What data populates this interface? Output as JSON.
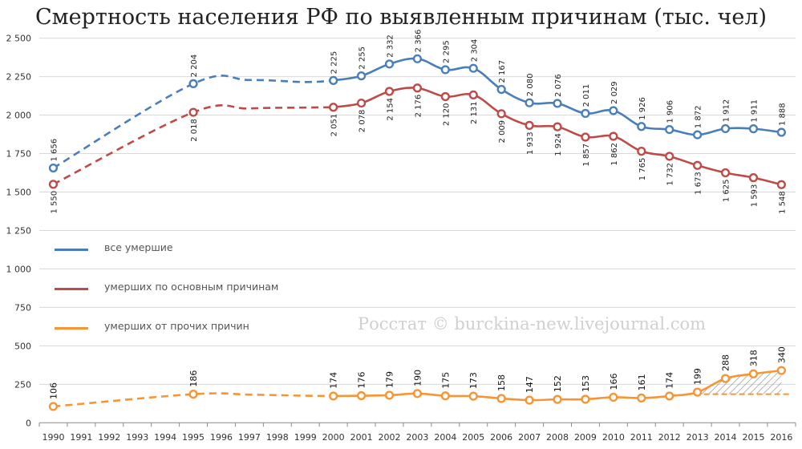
{
  "title": "Смертность населения РФ по выявленным причинам (тыс. чел)",
  "watermark": "Росстат © burckina-new.livejournal.com",
  "chart_data": {
    "type": "line",
    "title": "Смертность населения РФ по выявленным причинам (тыс. чел)",
    "x": [
      "1990",
      "1991",
      "1992",
      "1993",
      "1994",
      "1995",
      "1996",
      "1997",
      "1998",
      "1999",
      "2000",
      "2001",
      "2002",
      "2003",
      "2004",
      "2005",
      "2006",
      "2007",
      "2008",
      "2009",
      "2010",
      "2011",
      "2012",
      "2013",
      "2014",
      "2015",
      "2016"
    ],
    "ylim": [
      0,
      2500
    ],
    "yticks": [
      0,
      250,
      500,
      750,
      1000,
      1250,
      1500,
      1750,
      2000,
      2250,
      2500
    ],
    "ytick_labels": [
      "0",
      "250",
      "500",
      "750",
      "1 000",
      "1 250",
      "1 500",
      "1 750",
      "2 000",
      "2 250",
      "2 500"
    ],
    "grid": true,
    "legend_position": "left",
    "series": [
      {
        "name": "все умершие",
        "color": "#4a7ebb",
        "points": [
          {
            "x": "1990",
            "y": 1656,
            "label": "1 656"
          },
          {
            "x": "1995",
            "y": 2204,
            "label": "2 204"
          },
          {
            "x": "2000",
            "y": 2225,
            "label": "2 225"
          },
          {
            "x": "2001",
            "y": 2255,
            "label": "2 255"
          },
          {
            "x": "2002",
            "y": 2332,
            "label": "2 332"
          },
          {
            "x": "2003",
            "y": 2366,
            "label": "2 366"
          },
          {
            "x": "2004",
            "y": 2295,
            "label": "2 295"
          },
          {
            "x": "2005",
            "y": 2304,
            "label": "2 304"
          },
          {
            "x": "2006",
            "y": 2167,
            "label": "2 167"
          },
          {
            "x": "2007",
            "y": 2080,
            "label": "2 080"
          },
          {
            "x": "2008",
            "y": 2076,
            "label": "2 076"
          },
          {
            "x": "2009",
            "y": 2011,
            "label": "2 011"
          },
          {
            "x": "2010",
            "y": 2029,
            "label": "2 029"
          },
          {
            "x": "2011",
            "y": 1926,
            "label": "1 926"
          },
          {
            "x": "2012",
            "y": 1906,
            "label": "1 906"
          },
          {
            "x": "2013",
            "y": 1872,
            "label": "1 872"
          },
          {
            "x": "2014",
            "y": 1912,
            "label": "1 912"
          },
          {
            "x": "2015",
            "y": 1911,
            "label": "1 911"
          },
          {
            "x": "2016",
            "y": 1888,
            "label": "1 888"
          }
        ]
      },
      {
        "name": "умерших по основным причинам",
        "color": "#be4b48",
        "points": [
          {
            "x": "1990",
            "y": 1550,
            "label": "1 550"
          },
          {
            "x": "1995",
            "y": 2018,
            "label": "2 018"
          },
          {
            "x": "2000",
            "y": 2051,
            "label": "2 051"
          },
          {
            "x": "2001",
            "y": 2078,
            "label": "2 078"
          },
          {
            "x": "2002",
            "y": 2154,
            "label": "2 154"
          },
          {
            "x": "2003",
            "y": 2176,
            "label": "2 176"
          },
          {
            "x": "2004",
            "y": 2120,
            "label": "2 120"
          },
          {
            "x": "2005",
            "y": 2131,
            "label": "2 131"
          },
          {
            "x": "2006",
            "y": 2009,
            "label": "2 009"
          },
          {
            "x": "2007",
            "y": 1933,
            "label": "1 933"
          },
          {
            "x": "2008",
            "y": 1924,
            "label": "1 924"
          },
          {
            "x": "2009",
            "y": 1857,
            "label": "1 857"
          },
          {
            "x": "2010",
            "y": 1862,
            "label": "1 862"
          },
          {
            "x": "2011",
            "y": 1765,
            "label": "1 765"
          },
          {
            "x": "2012",
            "y": 1732,
            "label": "1 732"
          },
          {
            "x": "2013",
            "y": 1673,
            "label": "1 673"
          },
          {
            "x": "2014",
            "y": 1625,
            "label": "1 625"
          },
          {
            "x": "2015",
            "y": 1593,
            "label": "1 593"
          },
          {
            "x": "2016",
            "y": 1548,
            "label": "1 548"
          }
        ]
      },
      {
        "name": "умерших от прочих причин",
        "color": "#f79433",
        "points": [
          {
            "x": "1990",
            "y": 106,
            "label": "106"
          },
          {
            "x": "1995",
            "y": 186,
            "label": "186"
          },
          {
            "x": "2000",
            "y": 174,
            "label": "174"
          },
          {
            "x": "2001",
            "y": 176,
            "label": "176"
          },
          {
            "x": "2002",
            "y": 179,
            "label": "179"
          },
          {
            "x": "2003",
            "y": 190,
            "label": "190"
          },
          {
            "x": "2004",
            "y": 175,
            "label": "175"
          },
          {
            "x": "2005",
            "y": 173,
            "label": "173"
          },
          {
            "x": "2006",
            "y": 158,
            "label": "158"
          },
          {
            "x": "2007",
            "y": 147,
            "label": "147"
          },
          {
            "x": "2008",
            "y": 152,
            "label": "152"
          },
          {
            "x": "2009",
            "y": 153,
            "label": "153"
          },
          {
            "x": "2010",
            "y": 166,
            "label": "166"
          },
          {
            "x": "2011",
            "y": 161,
            "label": "161"
          },
          {
            "x": "2012",
            "y": 174,
            "label": "174"
          },
          {
            "x": "2013",
            "y": 199,
            "label": "199"
          },
          {
            "x": "2014",
            "y": 288,
            "label": "288"
          },
          {
            "x": "2015",
            "y": 318,
            "label": "318"
          },
          {
            "x": "2016",
            "y": 340,
            "label": "340"
          }
        ]
      }
    ],
    "dashed_segments": [
      {
        "series": 0,
        "x": [
          "1990",
          "1995",
          "1997",
          "1999",
          "2000"
        ],
        "y": [
          1656,
          2204,
          2228,
          2215,
          2225
        ]
      },
      {
        "series": 1,
        "x": [
          "1990",
          "1995",
          "1997",
          "1999",
          "2000"
        ],
        "y": [
          1550,
          2018,
          2043,
          2049,
          2051
        ]
      },
      {
        "series": 2,
        "x": [
          "1990",
          "1995",
          "1997",
          "1999",
          "2000"
        ],
        "y": [
          106,
          186,
          183,
          176,
          174
        ]
      }
    ],
    "baseline": {
      "series": 2,
      "from": "2013",
      "to": "2016",
      "y": 186,
      "hatched": true
    }
  }
}
